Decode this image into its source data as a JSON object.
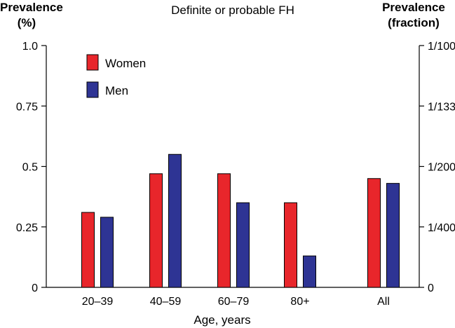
{
  "chart_data": {
    "type": "bar",
    "title": "Definite or probable FH",
    "ylabel_left": [
      "Prevalence",
      "(%)"
    ],
    "ylabel_right": [
      "Prevalence",
      "(fraction)"
    ],
    "xlabel": "Age, years",
    "categories": [
      "20–39",
      "40–59",
      "60–79",
      "80+",
      "All"
    ],
    "series": [
      {
        "name": "Women",
        "color": "#e8262b",
        "values": [
          0.31,
          0.47,
          0.47,
          0.35,
          0.45
        ]
      },
      {
        "name": "Men",
        "color": "#2e3494",
        "values": [
          0.29,
          0.55,
          0.35,
          0.13,
          0.43
        ]
      }
    ],
    "ylim": [
      0,
      1.0
    ],
    "left_ticks": [
      {
        "value": 0,
        "label": "0"
      },
      {
        "value": 0.25,
        "label": "0.25"
      },
      {
        "value": 0.5,
        "label": "0.5"
      },
      {
        "value": 0.75,
        "label": "0.75"
      },
      {
        "value": 1.0,
        "label": "1.0"
      }
    ],
    "right_ticks": [
      {
        "value": 0,
        "label": "0"
      },
      {
        "value": 0.25,
        "label": "1/400"
      },
      {
        "value": 0.5,
        "label": "1/200"
      },
      {
        "value": 0.75,
        "label": "1/133"
      },
      {
        "value": 1.0,
        "label": "1/100"
      }
    ],
    "legend_position": "top-left",
    "grid": false
  }
}
